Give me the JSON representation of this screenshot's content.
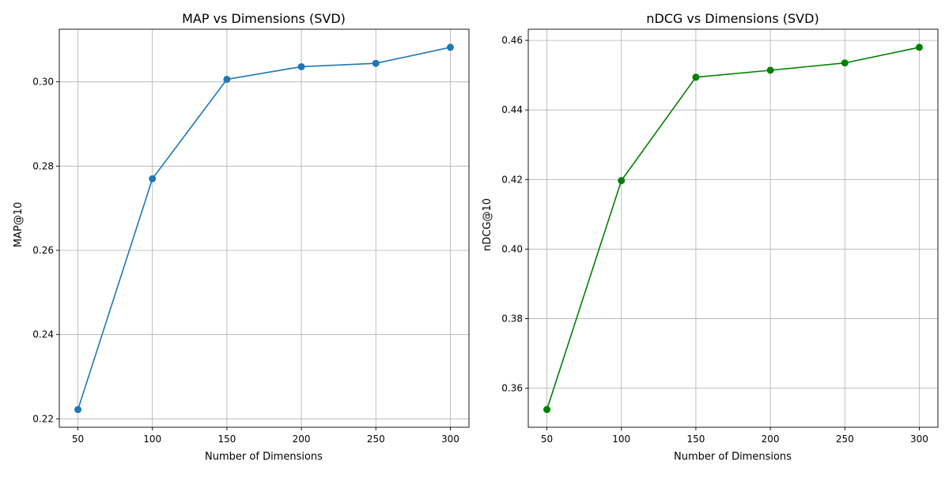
{
  "chart_data": [
    {
      "type": "line",
      "title": "MAP vs Dimensions (SVD)",
      "xlabel": "Number of Dimensions",
      "ylabel": "MAP@10",
      "x": [
        50,
        100,
        150,
        200,
        250,
        300
      ],
      "series": [
        {
          "values": [
            0.2222,
            0.277,
            0.3006,
            0.3036,
            0.3044,
            0.3082
          ],
          "color": "#1f77b4",
          "marker": "circle"
        }
      ],
      "xlim": [
        37.5,
        312.5
      ],
      "ylim": [
        0.218,
        0.3125
      ],
      "xticks": [
        50,
        100,
        150,
        200,
        250,
        300
      ],
      "yticks": [
        0.22,
        0.24,
        0.26,
        0.28,
        0.3
      ],
      "ytick_labels": [
        "0.22",
        "0.24",
        "0.26",
        "0.28",
        "0.30"
      ],
      "grid": true
    },
    {
      "type": "line",
      "title": "nDCG vs Dimensions (SVD)",
      "xlabel": "Number of Dimensions",
      "ylabel": "nDCG@10",
      "x": [
        50,
        100,
        150,
        200,
        250,
        300
      ],
      "series": [
        {
          "values": [
            0.3539,
            0.4197,
            0.4494,
            0.4514,
            0.4535,
            0.458
          ],
          "color": "#008000",
          "marker": "circle"
        }
      ],
      "xlim": [
        37.5,
        312.5
      ],
      "ylim": [
        0.3488,
        0.4632
      ],
      "xticks": [
        50,
        100,
        150,
        200,
        250,
        300
      ],
      "yticks": [
        0.36,
        0.38,
        0.4,
        0.42,
        0.44,
        0.46
      ],
      "ytick_labels": [
        "0.36",
        "0.38",
        "0.40",
        "0.42",
        "0.44",
        "0.46"
      ],
      "grid": true
    }
  ]
}
